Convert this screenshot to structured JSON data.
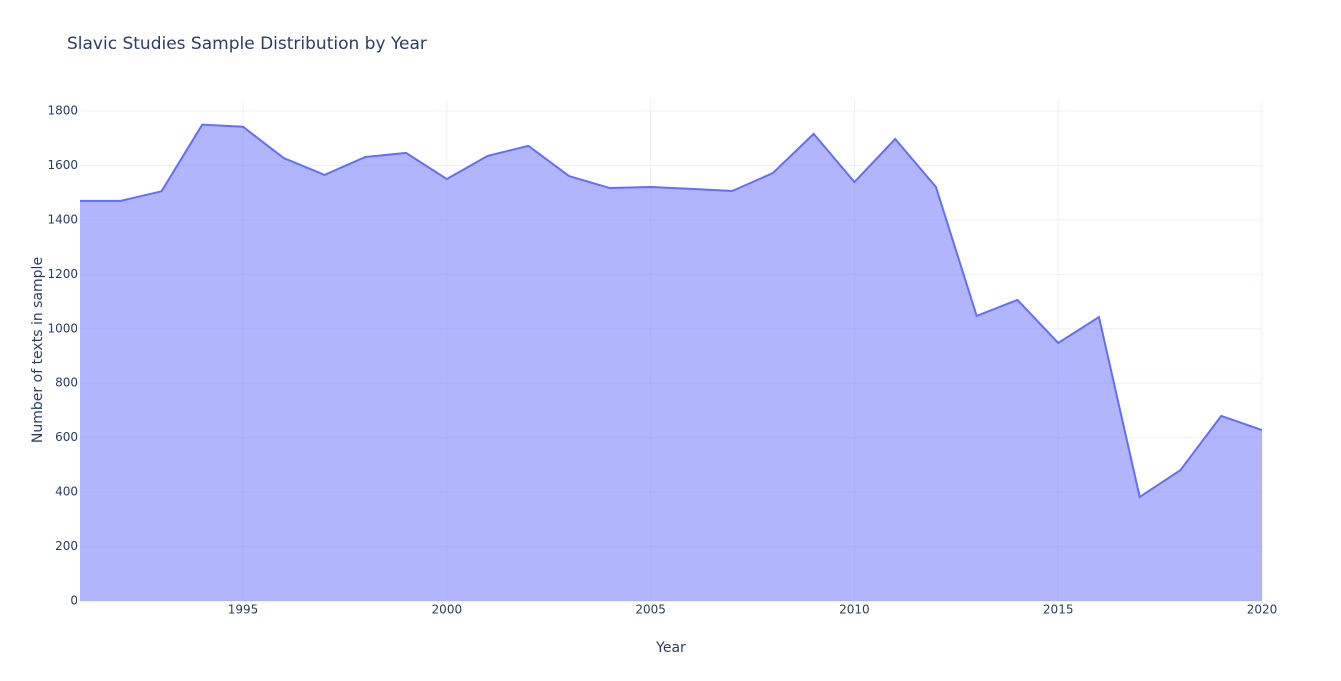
{
  "chart_data": {
    "type": "area",
    "title": "Slavic Studies Sample Distribution by Year",
    "x_label": "Year",
    "y_label": "Number of texts in sample",
    "x": [
      1991,
      1992,
      1993,
      1994,
      1995,
      1996,
      1997,
      1998,
      1999,
      2000,
      2001,
      2002,
      2003,
      2004,
      2005,
      2006,
      2007,
      2008,
      2009,
      2010,
      2011,
      2012,
      2013,
      2014,
      2015,
      2016,
      2017,
      2018,
      2019,
      2020
    ],
    "series": [
      {
        "name": "texts",
        "color": "#636efa",
        "values": [
          1470,
          1470,
          1505,
          1750,
          1742,
          1627,
          1565,
          1631,
          1646,
          1550,
          1635,
          1672,
          1561,
          1517,
          1521,
          1514,
          1506,
          1572,
          1716,
          1539,
          1697,
          1521,
          1047,
          1106,
          948,
          1043,
          382,
          481,
          680,
          628
        ]
      }
    ],
    "xlim": [
      1991,
      2020
    ],
    "xticks": [
      1995,
      2000,
      2005,
      2010,
      2015,
      2020
    ],
    "ylim": [
      0,
      1800
    ],
    "yticks": [
      0,
      200,
      400,
      600,
      800,
      1000,
      1200,
      1400,
      1600,
      1800
    ],
    "grid": true
  }
}
